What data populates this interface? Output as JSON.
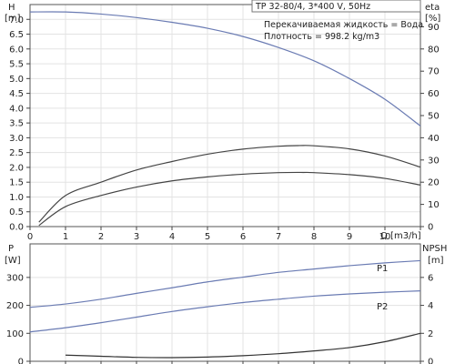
{
  "chart_data": [
    {
      "type": "line",
      "panel": "top",
      "title": "TP 32-80/4, 3*400 V, 50Hz",
      "annotations": [
        "Перекачиваемая жидкость = Вода",
        "Плотность = 998.2 kg/m3"
      ],
      "xlabel": "Q [m3/h]",
      "x_ticks": [
        "0",
        "1",
        "2",
        "3",
        "4",
        "5",
        "6",
        "7",
        "8",
        "9",
        "10"
      ],
      "xlim": [
        0,
        11
      ],
      "ylabel_left": "H",
      "ylabel_left_unit": "[m]",
      "ylim_left": [
        0,
        7.5
      ],
      "y_ticks_left": [
        "0.0",
        "0.5",
        "1.0",
        "1.5",
        "2.0",
        "2.5",
        "3.0",
        "3.5",
        "4.0",
        "4.5",
        "5.0",
        "5.5",
        "6.0",
        "6.5",
        "7.0"
      ],
      "ylabel_right": "eta",
      "ylabel_right_unit": "[%]",
      "ylim_right": [
        0,
        100
      ],
      "y_ticks_right": [
        "0",
        "10",
        "20",
        "30",
        "40",
        "50",
        "60",
        "70",
        "80",
        "90"
      ],
      "grid": true,
      "series": [
        {
          "axis": "left",
          "color": "#6a7bb3",
          "x": [
            0,
            1,
            2,
            3,
            4,
            5,
            6,
            7,
            8,
            9,
            10,
            11
          ],
          "y": [
            7.25,
            7.25,
            7.18,
            7.06,
            6.9,
            6.7,
            6.42,
            6.05,
            5.6,
            5.0,
            4.3,
            3.4
          ]
        },
        {
          "axis": "right",
          "color": "#444444",
          "x": [
            0.25,
            1,
            2,
            3,
            4,
            5,
            6,
            7,
            7.6,
            8,
            9,
            10,
            11
          ],
          "y": [
            2,
            14,
            20,
            25.5,
            29.3,
            32.6,
            34.9,
            36.2,
            36.5,
            36.4,
            35,
            31.8,
            26.8
          ]
        },
        {
          "axis": "right",
          "color": "#444444",
          "x": [
            0.25,
            1,
            2,
            3,
            4,
            5,
            6,
            7,
            7.7,
            8,
            9,
            10,
            11
          ],
          "y": [
            0.5,
            9,
            14,
            17.8,
            20.6,
            22.4,
            23.6,
            24.3,
            24.4,
            24.3,
            23.4,
            21.7,
            18.7
          ]
        }
      ]
    },
    {
      "type": "line",
      "panel": "bottom",
      "xlim": [
        0,
        11
      ],
      "ylabel_left": "P",
      "ylabel_left_unit": "[W]",
      "ylim_left": [
        0,
        420
      ],
      "y_ticks_left": [
        "0",
        "100",
        "200",
        "300"
      ],
      "ylabel_right": "NPSH",
      "ylabel_right_unit": "[m]",
      "ylim_right": [
        0,
        8.4
      ],
      "y_ticks_right": [
        "0",
        "2",
        "4",
        "6"
      ],
      "grid": true,
      "series": [
        {
          "name": "P1",
          "axis": "left",
          "color": "#6a7bb3",
          "x": [
            0,
            1,
            2,
            3,
            4,
            5,
            6,
            7,
            8,
            9,
            10,
            11
          ],
          "y": [
            193,
            205,
            222,
            243,
            263,
            284,
            301,
            318,
            330,
            342,
            352,
            360
          ]
        },
        {
          "name": "P2",
          "axis": "left",
          "color": "#6a7bb3",
          "x": [
            0,
            1,
            2,
            3,
            4,
            5,
            6,
            7,
            8,
            9,
            10,
            11
          ],
          "y": [
            105,
            120,
            138,
            158,
            178,
            195,
            210,
            222,
            233,
            241,
            247,
            252
          ]
        },
        {
          "axis": "right",
          "color": "#333333",
          "x": [
            1,
            2,
            3,
            4,
            5,
            6,
            7,
            8,
            9,
            10,
            11
          ],
          "y": [
            0.44,
            0.36,
            0.28,
            0.26,
            0.3,
            0.4,
            0.54,
            0.74,
            0.98,
            1.4,
            2.0
          ]
        }
      ]
    }
  ]
}
